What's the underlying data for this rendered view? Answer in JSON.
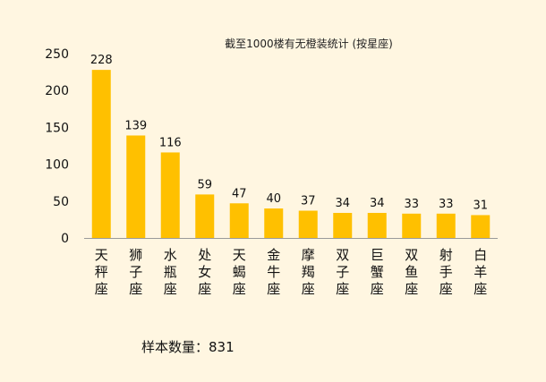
{
  "chart_data": {
    "type": "bar",
    "title": "截至1000楼有无橙装统计 (按星座)",
    "categories": [
      "天秤座",
      "狮子座",
      "水瓶座",
      "处女座",
      "天蝎座",
      "金牛座",
      "摩羯座",
      "双子座",
      "巨蟹座",
      "双鱼座",
      "射手座",
      "白羊座"
    ],
    "values": [
      228,
      139,
      116,
      59,
      47,
      40,
      37,
      34,
      34,
      33,
      33,
      31
    ],
    "ylim": [
      0,
      250
    ],
    "yticks": [
      0,
      50,
      100,
      150,
      200,
      250
    ],
    "xlabel": "",
    "ylabel": "",
    "grid": false,
    "bar_color": "#ffc000",
    "background_color": "#fff6e1"
  },
  "footer": {
    "sample_text": "样本数量：831"
  }
}
